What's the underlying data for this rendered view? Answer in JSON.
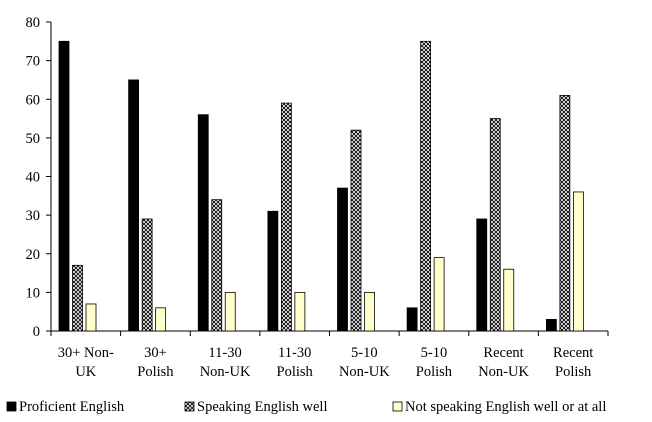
{
  "chart_data": {
    "type": "bar",
    "categories": [
      [
        "30+ Non-",
        "UK"
      ],
      [
        "30+",
        "Polish"
      ],
      [
        "11-30",
        "Non-UK"
      ],
      [
        "11-30",
        "Polish"
      ],
      [
        "5-10",
        "Non-UK"
      ],
      [
        "5-10",
        "Polish"
      ],
      [
        "Recent",
        "Non-UK"
      ],
      [
        "Recent",
        "Polish"
      ]
    ],
    "series": [
      {
        "name": "Proficient English",
        "values": [
          75,
          65,
          56,
          31,
          37,
          6,
          29,
          3
        ],
        "color": "#000000",
        "pattern": "solid"
      },
      {
        "name": "Speaking English well",
        "values": [
          17,
          29,
          34,
          59,
          52,
          75,
          55,
          61
        ],
        "color": "#ffffff",
        "pattern": "crosshatch"
      },
      {
        "name": "Not speaking English well or at all",
        "values": [
          7,
          6,
          10,
          10,
          10,
          19,
          16,
          36
        ],
        "color": "#ffffcc",
        "pattern": "solid"
      }
    ],
    "ylim": [
      0,
      80
    ],
    "yticks": [
      0,
      10,
      20,
      30,
      40,
      50,
      60,
      70,
      80
    ],
    "legend_position": "bottom",
    "grid": false
  }
}
